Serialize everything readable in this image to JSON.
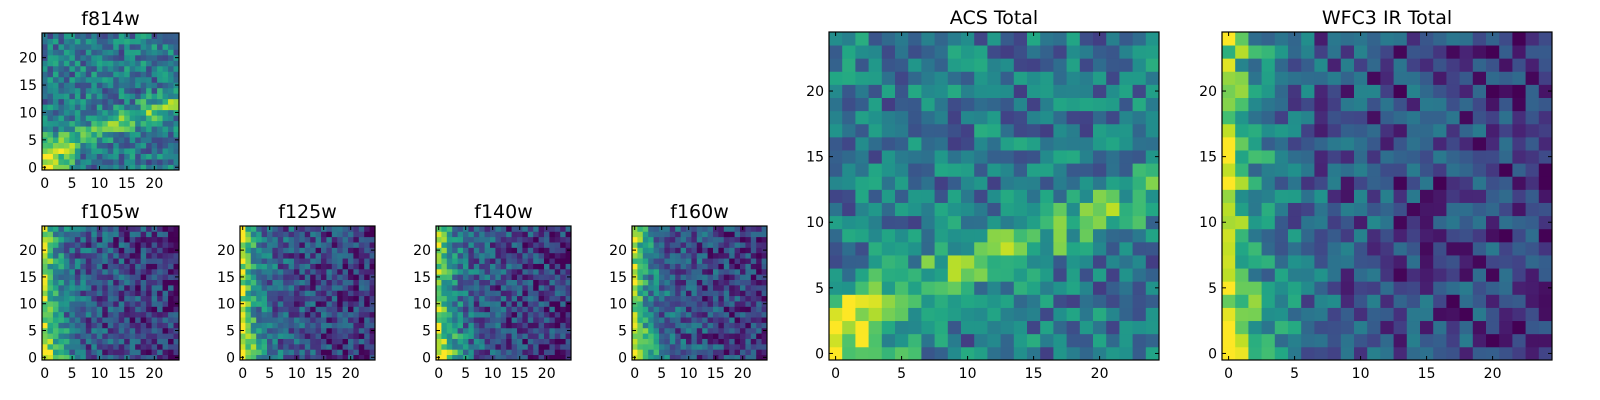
{
  "chart_data": [
    {
      "type": "heatmap",
      "title": "f814w",
      "xticks": [
        "0",
        "5",
        "10",
        "15",
        "20"
      ],
      "yticks": [
        "0",
        "5",
        "10",
        "15",
        "20"
      ],
      "xlim": [
        -0.5,
        24.5
      ],
      "ylim": [
        -0.5,
        24.5
      ],
      "colormap": "viridis",
      "grid": false,
      "pattern": "diag"
    },
    {
      "type": "heatmap",
      "title": "f105w",
      "xticks": [
        "0",
        "5",
        "10",
        "15",
        "20"
      ],
      "yticks": [
        "0",
        "5",
        "10",
        "15",
        "20"
      ],
      "xlim": [
        -0.5,
        24.5
      ],
      "ylim": [
        -0.5,
        24.5
      ],
      "colormap": "viridis",
      "grid": false,
      "pattern": "leftedge"
    },
    {
      "type": "heatmap",
      "title": "f125w",
      "xticks": [
        "0",
        "5",
        "10",
        "15",
        "20"
      ],
      "yticks": [
        "0",
        "5",
        "10",
        "15",
        "20"
      ],
      "xlim": [
        -0.5,
        24.5
      ],
      "ylim": [
        -0.5,
        24.5
      ],
      "colormap": "viridis",
      "grid": false,
      "pattern": "leftedge"
    },
    {
      "type": "heatmap",
      "title": "f140w",
      "xticks": [
        "0",
        "5",
        "10",
        "15",
        "20"
      ],
      "yticks": [
        "0",
        "5",
        "10",
        "15",
        "20"
      ],
      "xlim": [
        -0.5,
        24.5
      ],
      "ylim": [
        -0.5,
        24.5
      ],
      "colormap": "viridis",
      "grid": false,
      "pattern": "leftedge"
    },
    {
      "type": "heatmap",
      "title": "f160w",
      "xticks": [
        "0",
        "5",
        "10",
        "15",
        "20"
      ],
      "yticks": [
        "0",
        "5",
        "10",
        "15",
        "20"
      ],
      "xlim": [
        -0.5,
        24.5
      ],
      "ylim": [
        -0.5,
        24.5
      ],
      "colormap": "viridis",
      "grid": false,
      "pattern": "leftedge"
    },
    {
      "type": "heatmap",
      "title": "ACS Total",
      "xticks": [
        "0",
        "5",
        "10",
        "15",
        "20"
      ],
      "yticks": [
        "0",
        "5",
        "10",
        "15",
        "20"
      ],
      "xlim": [
        -0.5,
        24.5
      ],
      "ylim": [
        -0.5,
        24.5
      ],
      "colormap": "viridis",
      "grid": false,
      "pattern": "diag"
    },
    {
      "type": "heatmap",
      "title": "WFC3 IR Total",
      "xticks": [
        "0",
        "5",
        "10",
        "15",
        "20"
      ],
      "yticks": [
        "0",
        "5",
        "10",
        "15",
        "20"
      ],
      "xlim": [
        -0.5,
        24.5
      ],
      "ylim": [
        -0.5,
        24.5
      ],
      "colormap": "viridis",
      "grid": false,
      "pattern": "leftedge"
    }
  ]
}
